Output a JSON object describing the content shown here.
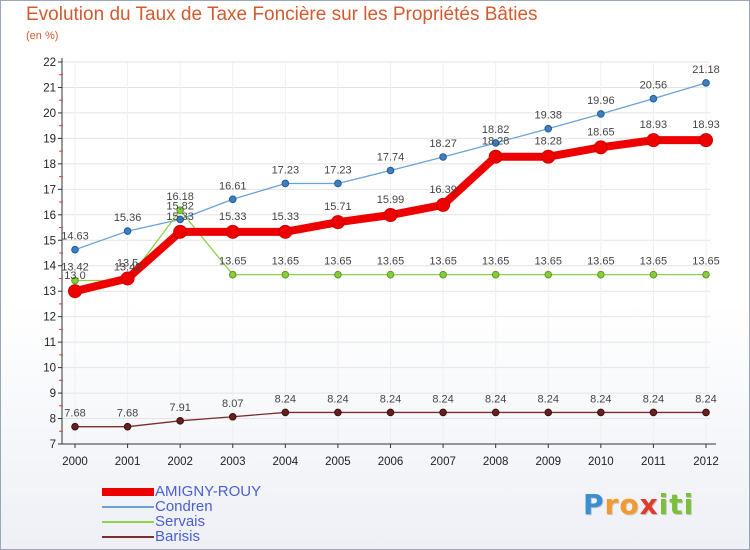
{
  "title": "Evolution du Taux de Taxe Foncière sur les Propriétés Bâties",
  "subtitle": "(en %)",
  "logo": {
    "letters": [
      "P",
      "r",
      "o",
      "x",
      "i",
      "t",
      "i"
    ],
    "colors": [
      "#3a8fd1",
      "#f29a2e",
      "#f29a2e",
      "#e03a2c",
      "#7bbf3a",
      "#7bbf3a",
      "#7bbf3a"
    ]
  },
  "chart_data": {
    "type": "line",
    "title": "Evolution du Taux de Taxe Foncière sur les Propriétés Bâties",
    "ylabel": "(en %)",
    "xlabel": "",
    "x": [
      "2000",
      "2001",
      "2002",
      "2003",
      "2004",
      "2005",
      "2006",
      "2007",
      "2008",
      "2009",
      "2010",
      "2011",
      "2012"
    ],
    "ylim": [
      7,
      22
    ],
    "yticks": [
      7,
      8,
      9,
      10,
      11,
      12,
      13,
      14,
      15,
      16,
      17,
      18,
      19,
      20,
      21,
      22
    ],
    "legend_position": "bottom-left",
    "series": [
      {
        "name": "AMIGNY-ROUY",
        "color": "#ee0000",
        "values": [
          13.0,
          13.5,
          15.33,
          15.33,
          15.33,
          15.71,
          15.99,
          16.39,
          18.28,
          18.28,
          18.65,
          18.93,
          18.93
        ],
        "labels": [
          "13.0",
          "13.5",
          "15.33",
          "15.33",
          "15.33",
          "15.71",
          "15.99",
          "16.39",
          "18.28",
          "18.28",
          "18.65",
          "18.93",
          "18.93"
        ]
      },
      {
        "name": "Condren",
        "color": "#6aa2d6",
        "values": [
          14.63,
          15.36,
          15.82,
          16.61,
          17.23,
          17.23,
          17.74,
          18.27,
          18.82,
          19.38,
          19.96,
          20.56,
          21.18
        ],
        "labels": [
          "14.63",
          "15.36",
          "15.82",
          "16.61",
          "17.23",
          "17.23",
          "17.74",
          "18.27",
          "18.82",
          "19.38",
          "19.96",
          "20.56",
          "21.18"
        ]
      },
      {
        "name": "Servais",
        "color": "#8fd14a",
        "values": [
          13.42,
          13.42,
          16.18,
          13.65,
          13.65,
          13.65,
          13.65,
          13.65,
          13.65,
          13.65,
          13.65,
          13.65,
          13.65
        ],
        "labels": [
          "13.42",
          "13.42",
          "16.18",
          "13.65",
          "13.65",
          "13.65",
          "13.65",
          "13.65",
          "13.65",
          "13.65",
          "13.65",
          "13.65",
          "13.65"
        ]
      },
      {
        "name": "Barisis",
        "color": "#7a2f2f",
        "values": [
          7.68,
          7.68,
          7.91,
          8.07,
          8.24,
          8.24,
          8.24,
          8.24,
          8.24,
          8.24,
          8.24,
          8.24,
          8.24
        ],
        "labels": [
          "7.68",
          "7.68",
          "7.91",
          "8.07",
          "8.24",
          "8.24",
          "8.24",
          "8.24",
          "8.24",
          "8.24",
          "8.24",
          "8.24",
          "8.24"
        ]
      }
    ]
  }
}
